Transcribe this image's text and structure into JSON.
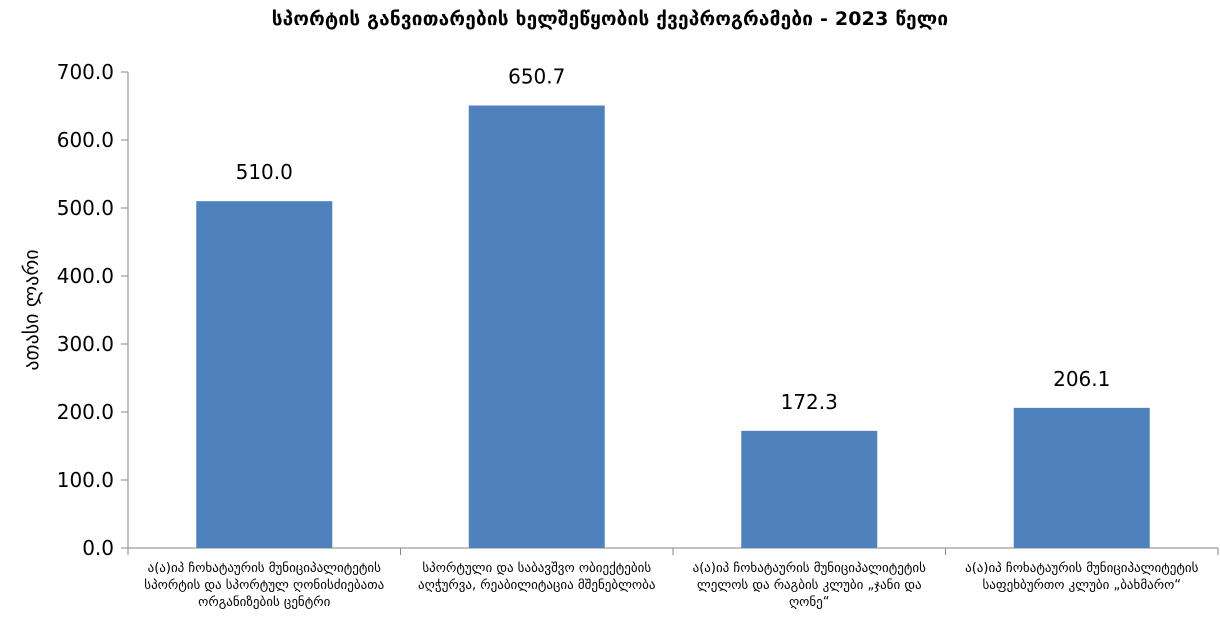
{
  "chart_data": {
    "type": "bar",
    "title": "სპორტის განვითარების ხელშეწყობის ქვეპროგრამები - 2023 წელი",
    "xlabel": "",
    "ylabel": "ათასი ლარი",
    "categories": [
      "ა(ა)იპ ჩოხატაურის მუნიციპალიტეტის სპორტის და სპორტულ ღონისძიებათა ორგანიზების ცენტრი",
      "სპორტული და საბავშვო ობიექტების აღჭურვა, რეაბილიტაცია მშენებლობა",
      "ა(ა)იპ ჩოხატაურის მუნიციპალიტეტის ლელოს და რაგბის კლუბი „ჯანი და ღონე“",
      "ა(ა)იპ ჩოხატაურის მუნიციპალიტეტის საფეხბურთო კლუბი „ბახმარო“"
    ],
    "values": [
      510.0,
      650.7,
      172.3,
      206.1
    ],
    "value_labels": [
      "510.0",
      "650.7",
      "172.3",
      "206.1"
    ],
    "ylim": [
      0,
      700
    ],
    "yticks": [
      "0.0",
      "100.0",
      "200.0",
      "300.0",
      "400.0",
      "500.0",
      "600.0",
      "700.0"
    ],
    "grid": false,
    "legend": "none",
    "bar_color": "#4f81bd",
    "axis_color": "#868686"
  }
}
